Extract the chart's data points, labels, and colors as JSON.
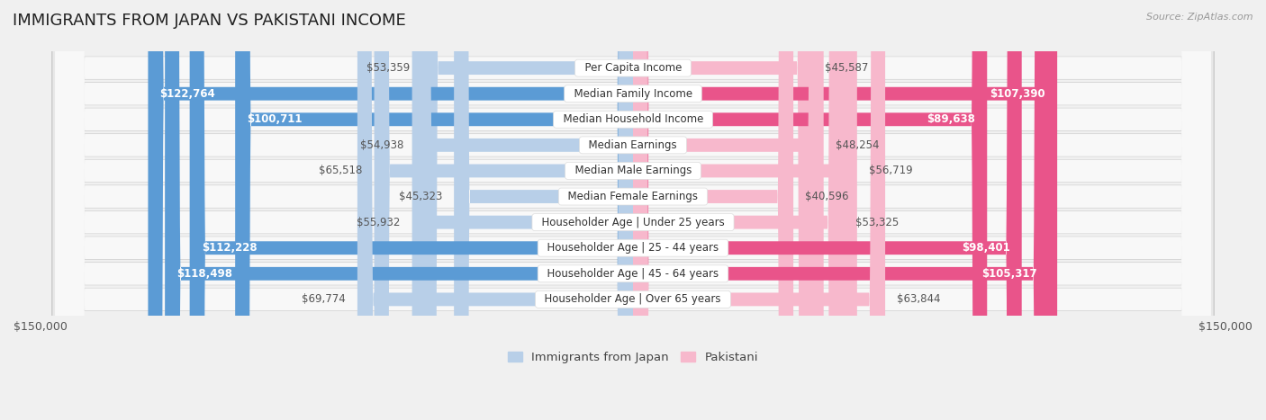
{
  "title": "IMMIGRANTS FROM JAPAN VS PAKISTANI INCOME",
  "source": "Source: ZipAtlas.com",
  "categories": [
    "Per Capita Income",
    "Median Family Income",
    "Median Household Income",
    "Median Earnings",
    "Median Male Earnings",
    "Median Female Earnings",
    "Householder Age | Under 25 years",
    "Householder Age | 25 - 44 years",
    "Householder Age | 45 - 64 years",
    "Householder Age | Over 65 years"
  ],
  "japan_values": [
    53359,
    122764,
    100711,
    54938,
    65518,
    45323,
    55932,
    112228,
    118498,
    69774
  ],
  "pakistan_values": [
    45587,
    107390,
    89638,
    48254,
    56719,
    40596,
    53325,
    98401,
    105317,
    63844
  ],
  "japan_labels": [
    "$53,359",
    "$122,764",
    "$100,711",
    "$54,938",
    "$65,518",
    "$45,323",
    "$55,932",
    "$112,228",
    "$118,498",
    "$69,774"
  ],
  "pakistan_labels": [
    "$45,587",
    "$107,390",
    "$89,638",
    "$48,254",
    "$56,719",
    "$40,596",
    "$53,325",
    "$98,401",
    "$105,317",
    "$63,844"
  ],
  "japan_color_light": "#b8cfe8",
  "japan_color_dark": "#5b9bd5",
  "pakistan_color_light": "#f7b8cc",
  "pakistan_color_dark": "#e9548a",
  "japan_threshold": 80000,
  "pakistan_threshold": 80000,
  "max_value": 150000,
  "bg_color": "#f0f0f0",
  "row_bg": "#e8e8e8",
  "row_inner": "#f8f8f8",
  "title_fontsize": 13,
  "label_fontsize": 8.5,
  "category_fontsize": 8.5,
  "axis_label_fontsize": 9,
  "legend_fontsize": 9.5
}
